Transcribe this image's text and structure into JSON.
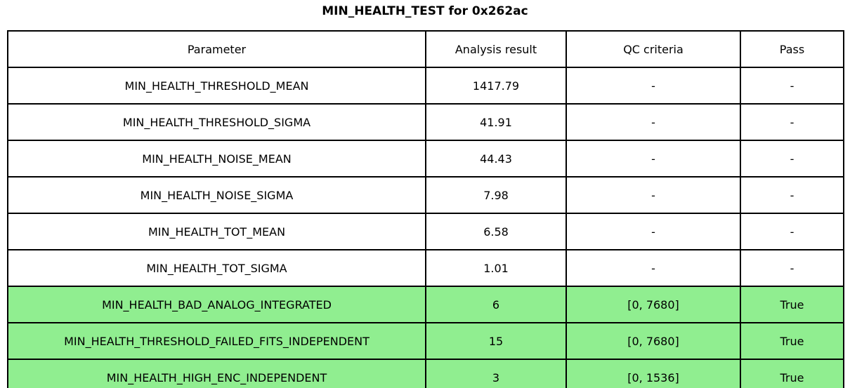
{
  "title": "MIN_HEALTH_TEST for 0x262ac",
  "colors": {
    "highlight_green": "#90ee90",
    "border": "#000000",
    "background": "#ffffff",
    "text": "#000000"
  },
  "chart_data": {
    "type": "table",
    "title": "MIN_HEALTH_TEST for 0x262ac",
    "columns": [
      "Parameter",
      "Analysis result",
      "QC criteria",
      "Pass"
    ],
    "rows": [
      [
        "MIN_HEALTH_THRESHOLD_MEAN",
        "1417.79",
        "-",
        "-"
      ],
      [
        "MIN_HEALTH_THRESHOLD_SIGMA",
        "41.91",
        "-",
        "-"
      ],
      [
        "MIN_HEALTH_NOISE_MEAN",
        "44.43",
        "-",
        "-"
      ],
      [
        "MIN_HEALTH_NOISE_SIGMA",
        "7.98",
        "-",
        "-"
      ],
      [
        "MIN_HEALTH_TOT_MEAN",
        "6.58",
        "-",
        "-"
      ],
      [
        "MIN_HEALTH_TOT_SIGMA",
        "1.01",
        "-",
        "-"
      ],
      [
        "MIN_HEALTH_BAD_ANALOG_INTEGRATED",
        "6",
        "[0, 7680]",
        "True"
      ],
      [
        "MIN_HEALTH_THRESHOLD_FAILED_FITS_INDEPENDENT",
        "15",
        "[0, 7680]",
        "True"
      ],
      [
        "MIN_HEALTH_HIGH_ENC_INDEPENDENT",
        "3",
        "[0, 1536]",
        "True"
      ]
    ],
    "row_highlighted": [
      false,
      false,
      false,
      false,
      false,
      false,
      true,
      true,
      true
    ],
    "highlight_color": "#90ee90",
    "grid": true,
    "legend_position": "none"
  }
}
